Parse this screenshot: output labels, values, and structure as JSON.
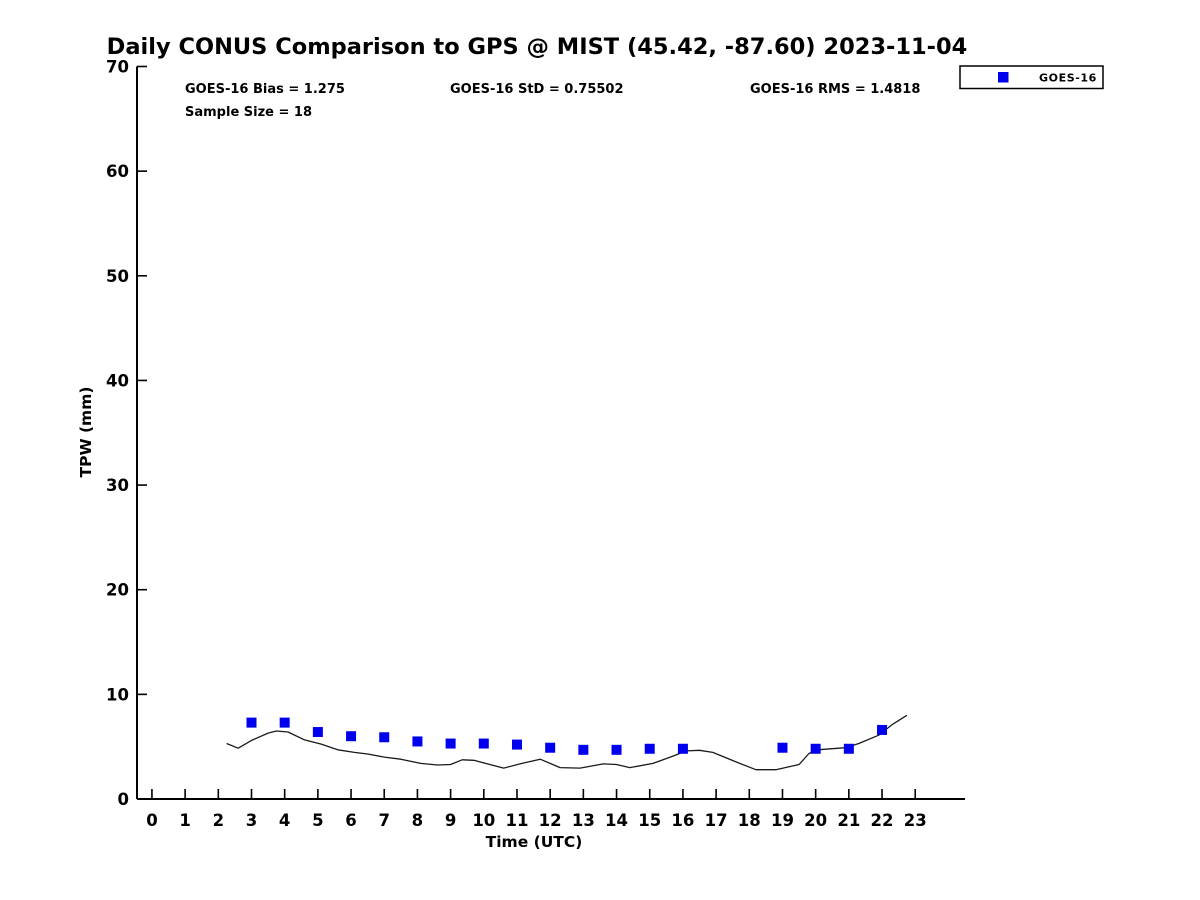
{
  "chart_data": {
    "type": "line",
    "title": "Daily CONUS Comparison to GPS @ MIST (45.42, -87.60) 2023-11-04",
    "xlabel": "Time (UTC)",
    "ylabel": "TPW (mm)",
    "xlim": [
      -0.45,
      24.5
    ],
    "ylim": [
      0,
      70
    ],
    "xticks": [
      0,
      1,
      2,
      3,
      4,
      5,
      6,
      7,
      8,
      9,
      10,
      11,
      12,
      13,
      14,
      15,
      16,
      17,
      18,
      19,
      20,
      21,
      22,
      23
    ],
    "yticks": [
      0,
      10,
      20,
      30,
      40,
      50,
      60,
      70
    ],
    "grid": false,
    "legend_position": "top-right-outside",
    "series": [
      {
        "name": "GPS",
        "type": "line",
        "color": "#1a1a1a",
        "x": [
          2.25,
          2.6,
          3.0,
          3.5,
          3.75,
          4.1,
          4.6,
          5.1,
          5.6,
          6.1,
          6.5,
          7.0,
          7.5,
          8.1,
          8.6,
          9.0,
          9.35,
          9.7,
          10.6,
          11.15,
          11.7,
          12.3,
          12.9,
          13.6,
          14.0,
          14.4,
          15.1,
          15.7,
          16.1,
          16.5,
          16.9,
          17.6,
          18.2,
          18.8,
          19.5,
          19.8,
          20.05,
          20.9,
          21.3,
          21.9,
          22.3,
          22.75
        ],
        "y": [
          5.3,
          4.85,
          5.6,
          6.3,
          6.5,
          6.4,
          5.65,
          5.25,
          4.7,
          4.45,
          4.3,
          4.0,
          3.8,
          3.4,
          3.25,
          3.3,
          3.75,
          3.7,
          2.95,
          3.4,
          3.8,
          3.0,
          2.95,
          3.35,
          3.3,
          3.0,
          3.4,
          4.1,
          4.6,
          4.65,
          4.45,
          3.55,
          2.8,
          2.8,
          3.3,
          4.35,
          4.7,
          4.9,
          5.3,
          6.1,
          7.1,
          8.0
        ]
      },
      {
        "name": "GOES-16",
        "type": "scatter",
        "marker": "square",
        "color": "#0000ee",
        "x": [
          3,
          4,
          5,
          6,
          7,
          8,
          9,
          10,
          11,
          12,
          13,
          14,
          15,
          16,
          19,
          20,
          21,
          22
        ],
        "y": [
          7.3,
          7.3,
          6.4,
          6.0,
          5.9,
          5.5,
          5.3,
          5.3,
          5.2,
          4.9,
          4.7,
          4.7,
          4.8,
          4.8,
          4.9,
          4.8,
          4.8,
          6.6
        ]
      }
    ]
  },
  "annotations": {
    "bias": "GOES-16 Bias = 1.275",
    "std": "GOES-16 StD = 0.75502",
    "rms": "GOES-16 RMS = 1.4818",
    "sample_size": "Sample Size = 18"
  },
  "legend": {
    "entries": [
      {
        "label": "GOES-16",
        "marker": "square",
        "color": "#0000ee"
      }
    ]
  },
  "colors": {
    "marker_blue": "#0000ee",
    "line_black": "#1a1a1a",
    "axis_black": "#000000",
    "background": "#ffffff"
  }
}
